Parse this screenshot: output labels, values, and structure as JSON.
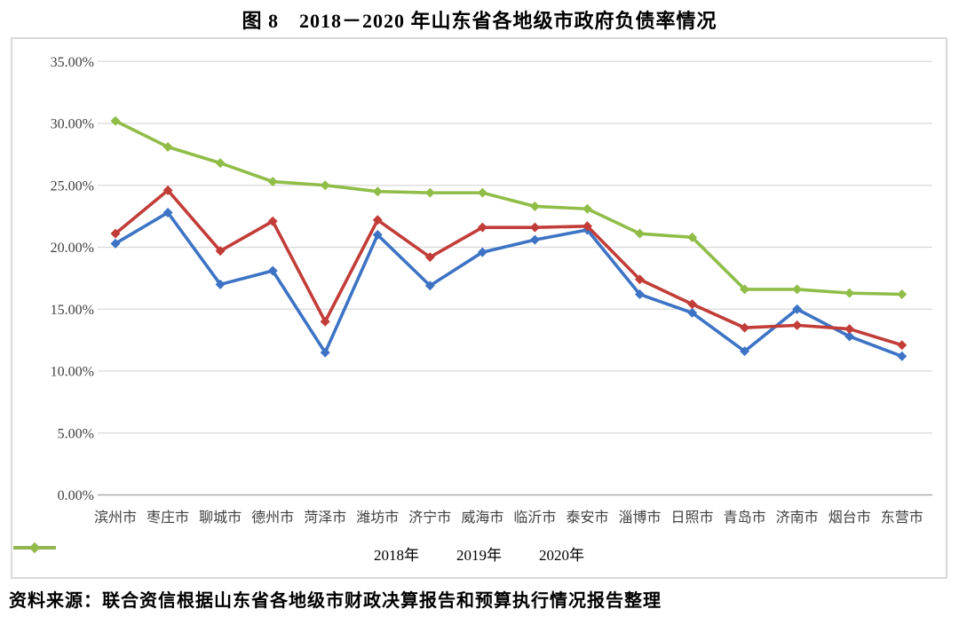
{
  "title": "图 8　2018－2020 年山东省各地级市政府负债率情况",
  "source_note": "资料来源：联合资信根据山东省各地级市财政决算报告和预算执行情况报告整理",
  "colors": {
    "grid": "#d9d9d9",
    "axis": "#ababab",
    "border": "#d9d9d9",
    "series_2018": "#3d73c5",
    "series_2019": "#c23c38",
    "series_2020": "#90bd48"
  },
  "chart_data": {
    "type": "line",
    "title": "图 8　2018－2020 年山东省各地级市政府负债率情况",
    "xlabel": "",
    "ylabel": "",
    "ylim": [
      0,
      35
    ],
    "ytick_step": 5,
    "ytick_labels": [
      "0.00%",
      "5.00%",
      "10.00%",
      "15.00%",
      "20.00%",
      "25.00%",
      "30.00%",
      "35.00%"
    ],
    "grid": true,
    "legend_position": "bottom",
    "marker": "diamond",
    "categories": [
      "滨州市",
      "枣庄市",
      "聊城市",
      "德州市",
      "菏泽市",
      "潍坊市",
      "济宁市",
      "威海市",
      "临沂市",
      "泰安市",
      "淄博市",
      "日照市",
      "青岛市",
      "济南市",
      "烟台市",
      "东营市"
    ],
    "series": [
      {
        "name": "2018年",
        "color": "#3d73c5",
        "values": [
          20.3,
          22.8,
          17.0,
          18.1,
          11.5,
          21.0,
          16.9,
          19.6,
          20.6,
          21.4,
          16.2,
          14.7,
          11.6,
          15.0,
          12.8,
          11.2
        ]
      },
      {
        "name": "2019年",
        "color": "#c23c38",
        "values": [
          21.1,
          24.6,
          19.7,
          22.1,
          14.0,
          22.2,
          19.2,
          21.6,
          21.6,
          21.7,
          17.4,
          15.4,
          13.5,
          13.7,
          13.4,
          12.1
        ]
      },
      {
        "name": "2020年",
        "color": "#90bd48",
        "values": [
          30.2,
          28.1,
          26.8,
          25.3,
          25.0,
          24.5,
          24.4,
          24.4,
          23.3,
          23.1,
          21.1,
          20.8,
          16.6,
          16.6,
          16.3,
          16.2
        ]
      }
    ]
  }
}
